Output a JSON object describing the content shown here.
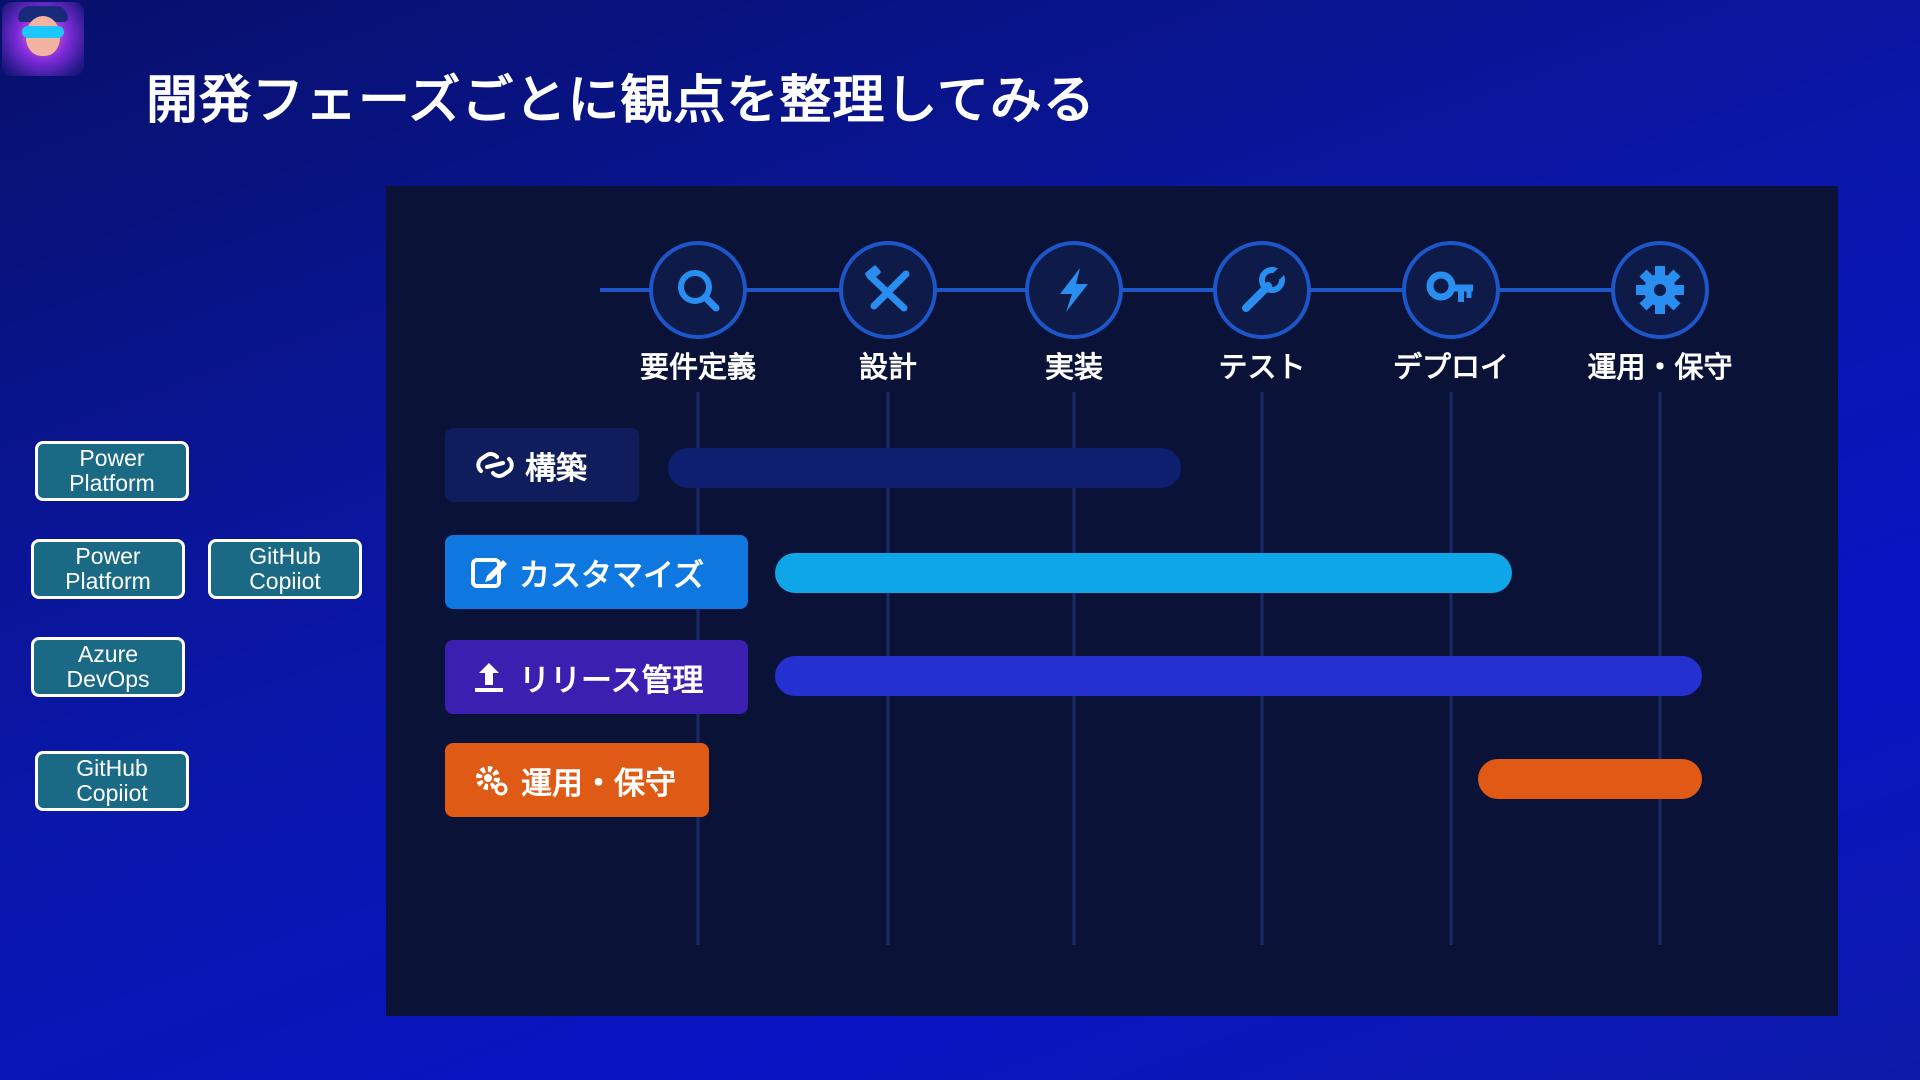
{
  "title": "開発フェーズごとに観点を整理してみる",
  "colors": {
    "panel": "#0b1238",
    "circle_fill": "#0e1a48",
    "circle_stroke": "#1d56c8",
    "icon": "#2a8ef0",
    "connector": "#1d56c8",
    "guide": "#1a2a66"
  },
  "phases": [
    {
      "label": "要件定義",
      "icon": "search-icon"
    },
    {
      "label": "設計",
      "icon": "tools-icon"
    },
    {
      "label": "実装",
      "icon": "lightning-icon"
    },
    {
      "label": "テスト",
      "icon": "wrench-icon"
    },
    {
      "label": "デプロイ",
      "icon": "key-icon"
    },
    {
      "label": "運用・保守",
      "icon": "gear-icon"
    }
  ],
  "tracks": [
    {
      "label": "構築",
      "icon": "link-icon",
      "color": "#0f1d5c",
      "bar_color": "#0d1f6e",
      "bar_start": 0.0,
      "bar_end": 0.42
    },
    {
      "label": "カスタマイズ",
      "icon": "edit-icon",
      "color": "#0e78e0",
      "bar_color": "#0ea6e6",
      "bar_start": 0.42,
      "bar_end": 4.4
    },
    {
      "label": "リリース管理",
      "icon": "upload-icon",
      "color": "#3a1fb0",
      "bar_color": "#2430cf",
      "bar_start": 0.42,
      "bar_end": 5.23
    },
    {
      "label": "運用・保守",
      "icon": "gear-icon",
      "color": "#df5a15",
      "bar_color": "#e05a16",
      "bar_start": 4.15,
      "bar_end": 5.23
    }
  ],
  "tools": [
    {
      "lines": [
        "Power",
        "Platform"
      ]
    },
    {
      "lines": [
        "Power",
        "Platform"
      ]
    },
    {
      "lines": [
        "GitHub",
        "Copiiot"
      ]
    },
    {
      "lines": [
        "Azure",
        "DevOps"
      ]
    },
    {
      "lines": [
        "GitHub",
        "Copiiot"
      ]
    }
  ]
}
